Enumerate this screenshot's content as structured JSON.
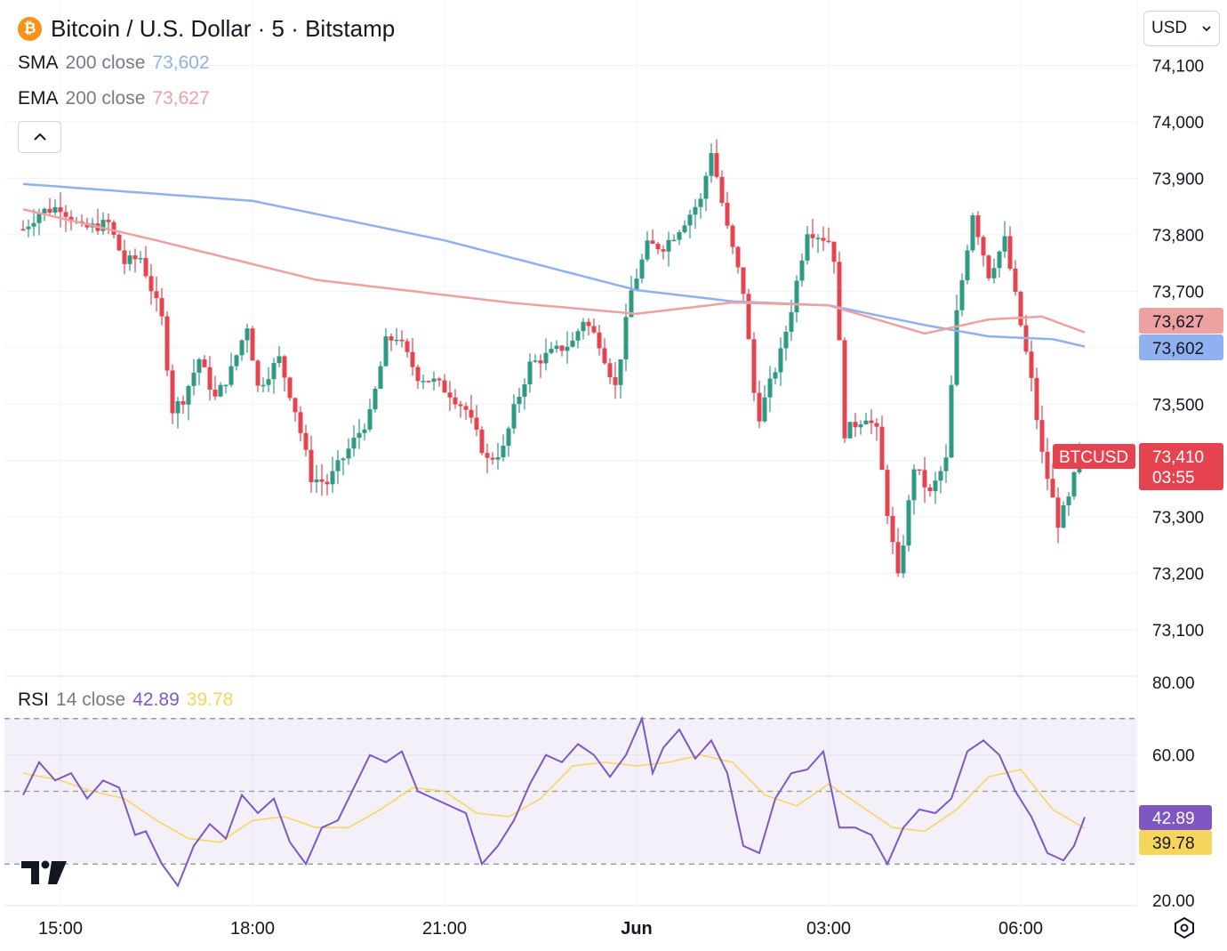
{
  "header": {
    "coin_symbol": "₿",
    "title": "Bitcoin / U.S. Dollar · 5 · Bitstamp",
    "sma": {
      "name": "SMA",
      "params": "200 close",
      "value": "73,602",
      "color": "#8fb1f0"
    },
    "ema": {
      "name": "EMA",
      "params": "200 close",
      "value": "73,627",
      "color": "#eea1a1"
    },
    "collapse_icon": "chevron-up-icon"
  },
  "currency_selector": {
    "value": "USD",
    "icon": "chevron-down-icon"
  },
  "rsi_header": {
    "name": "RSI",
    "params": "14 close",
    "rsi_value": "42.89",
    "ma_value": "39.78",
    "rsi_color": "#7e57c2",
    "ma_color": "#f6d55c"
  },
  "price_scale": {
    "ticks": [
      "74,100",
      "74,000",
      "73,900",
      "73,800",
      "73,700",
      "73,500",
      "73,300",
      "73,200",
      "73,100"
    ],
    "ema_badge": "73,627",
    "sma_badge": "73,602",
    "symbol_badge": "BTCUSD",
    "last_price": "73,410",
    "countdown": "03:55",
    "down_color": "#e5434f",
    "up_color": "#2f9a83"
  },
  "rsi_scale": {
    "ticks": [
      "80.00",
      "60.00",
      "20.00"
    ],
    "rsi_badge": "42.89",
    "ma_badge": "39.78",
    "upper_band": 70,
    "middle_band": 50,
    "lower_band": 30
  },
  "time_axis": {
    "labels": [
      "15:00",
      "18:00",
      "21:00",
      "Jun",
      "03:00",
      "06:00"
    ]
  },
  "branding": {
    "logo_icon": "tradingview-logo-icon",
    "settings_icon": "settings-gear-icon"
  },
  "chart_data": [
    {
      "type": "candlestick",
      "title": "Bitcoin / U.S. Dollar · 5 · Bitstamp",
      "ylim": [
        73050,
        74150
      ],
      "x_start": "14:25",
      "x_end": "07:00",
      "x_labels": [
        "15:00",
        "18:00",
        "21:00",
        "Jun",
        "03:00",
        "06:00"
      ],
      "close_anchors": [
        [
          "14:25",
          73810
        ],
        [
          "14:40",
          73840
        ],
        [
          "15:00",
          73850
        ],
        [
          "15:20",
          73810
        ],
        [
          "15:45",
          73820
        ],
        [
          "16:00",
          73750
        ],
        [
          "16:15",
          73760
        ],
        [
          "16:35",
          73650
        ],
        [
          "16:45",
          73490
        ],
        [
          "16:55",
          73510
        ],
        [
          "17:10",
          73580
        ],
        [
          "17:25",
          73510
        ],
        [
          "17:40",
          73560
        ],
        [
          "17:55",
          73640
        ],
        [
          "18:05",
          73530
        ],
        [
          "18:25",
          73580
        ],
        [
          "18:40",
          73490
        ],
        [
          "18:55",
          73370
        ],
        [
          "19:10",
          73360
        ],
        [
          "19:30",
          73420
        ],
        [
          "19:50",
          73480
        ],
        [
          "20:05",
          73610
        ],
        [
          "20:15",
          73620
        ],
        [
          "20:35",
          73550
        ],
        [
          "20:50",
          73540
        ],
        [
          "21:05",
          73520
        ],
        [
          "21:20",
          73490
        ],
        [
          "21:40",
          73400
        ],
        [
          "21:55",
          73420
        ],
        [
          "22:05",
          73490
        ],
        [
          "22:20",
          73570
        ],
        [
          "22:40",
          73590
        ],
        [
          "23:00",
          73610
        ],
        [
          "23:10",
          73650
        ],
        [
          "23:25",
          73610
        ],
        [
          "23:40",
          73530
        ],
        [
          "23:55",
          73700
        ],
        [
          "0:10",
          73780
        ],
        [
          "0:25",
          73780
        ],
        [
          "0:35",
          73800
        ],
        [
          "0:55",
          73850
        ],
        [
          "1:00",
          73860
        ],
        [
          "1:10",
          73950
        ],
        [
          "1:25",
          73810
        ],
        [
          "1:40",
          73700
        ],
        [
          "1:50",
          73520
        ],
        [
          "1:55",
          73480
        ],
        [
          "2:15",
          73590
        ],
        [
          "2:25",
          73670
        ],
        [
          "2:40",
          73810
        ],
        [
          "3:00",
          73790
        ],
        [
          "3:05",
          73760
        ],
        [
          "3:15",
          73450
        ],
        [
          "3:35",
          73480
        ],
        [
          "3:45",
          73450
        ],
        [
          "3:55",
          73310
        ],
        [
          "4:05",
          73190
        ],
        [
          "4:20",
          73390
        ],
        [
          "4:35",
          73340
        ],
        [
          "4:50",
          73400
        ],
        [
          "5:00",
          73660
        ],
        [
          "5:15",
          73840
        ],
        [
          "5:30",
          73730
        ],
        [
          "5:45",
          73790
        ],
        [
          "6:00",
          73640
        ],
        [
          "6:10",
          73540
        ],
        [
          "6:20",
          73410
        ],
        [
          "6:35",
          73290
        ],
        [
          "6:45",
          73330
        ],
        [
          "6:55",
          73410
        ]
      ],
      "sma_200": [
        [
          "14:25",
          73890
        ],
        [
          "18:00",
          73860
        ],
        [
          "21:00",
          73790
        ],
        [
          "0:00",
          73702
        ],
        [
          "1:30",
          73682
        ],
        [
          "3:00",
          73675
        ],
        [
          "4:30",
          73640
        ],
        [
          "5:30",
          73620
        ],
        [
          "6:30",
          73615
        ],
        [
          "7:00",
          73602
        ]
      ],
      "ema_200": [
        [
          "14:25",
          73845
        ],
        [
          "16:30",
          73790
        ],
        [
          "19:00",
          73720
        ],
        [
          "22:00",
          73680
        ],
        [
          "0:00",
          73660
        ],
        [
          "1:30",
          73680
        ],
        [
          "3:00",
          73675
        ],
        [
          "4:30",
          73625
        ],
        [
          "5:30",
          73650
        ],
        [
          "6:20",
          73655
        ],
        [
          "7:00",
          73627
        ]
      ],
      "last_price": 73410
    },
    {
      "type": "line",
      "title": "RSI 14 close",
      "ylim": [
        20,
        80
      ],
      "bands": [
        30,
        50,
        70
      ],
      "rsi": [
        [
          "14:25",
          49
        ],
        [
          "14:40",
          58
        ],
        [
          "14:55",
          53
        ],
        [
          "15:10",
          55
        ],
        [
          "15:25",
          48
        ],
        [
          "15:40",
          53
        ],
        [
          "15:55",
          51
        ],
        [
          "16:10",
          38
        ],
        [
          "16:20",
          39
        ],
        [
          "16:35",
          30
        ],
        [
          "16:50",
          24
        ],
        [
          "17:05",
          35
        ],
        [
          "17:20",
          41
        ],
        [
          "17:35",
          37
        ],
        [
          "17:50",
          49
        ],
        [
          "18:05",
          44
        ],
        [
          "18:20",
          48
        ],
        [
          "18:35",
          36
        ],
        [
          "18:50",
          30
        ],
        [
          "19:05",
          40
        ],
        [
          "19:20",
          42
        ],
        [
          "19:35",
          51
        ],
        [
          "19:50",
          60
        ],
        [
          "20:05",
          58
        ],
        [
          "20:20",
          61
        ],
        [
          "20:35",
          50
        ],
        [
          "20:50",
          48
        ],
        [
          "21:05",
          46
        ],
        [
          "21:20",
          44
        ],
        [
          "21:35",
          30
        ],
        [
          "21:50",
          35
        ],
        [
          "22:05",
          42
        ],
        [
          "22:20",
          52
        ],
        [
          "22:35",
          60
        ],
        [
          "22:50",
          58
        ],
        [
          "23:05",
          63
        ],
        [
          "23:20",
          60
        ],
        [
          "23:35",
          54
        ],
        [
          "23:50",
          60
        ],
        [
          "0:05",
          70
        ],
        [
          "0:15",
          55
        ],
        [
          "0:25",
          62
        ],
        [
          "0:40",
          67
        ],
        [
          "0:55",
          59
        ],
        [
          "1:10",
          64
        ],
        [
          "1:25",
          55
        ],
        [
          "1:40",
          35
        ],
        [
          "1:55",
          33
        ],
        [
          "2:10",
          48
        ],
        [
          "2:25",
          55
        ],
        [
          "2:40",
          56
        ],
        [
          "2:55",
          61
        ],
        [
          "3:10",
          40
        ],
        [
          "3:25",
          40
        ],
        [
          "3:40",
          38
        ],
        [
          "3:55",
          30
        ],
        [
          "4:10",
          40
        ],
        [
          "4:25",
          45
        ],
        [
          "4:40",
          44
        ],
        [
          "4:55",
          48
        ],
        [
          "5:10",
          61
        ],
        [
          "5:25",
          64
        ],
        [
          "5:40",
          60
        ],
        [
          "5:55",
          50
        ],
        [
          "6:10",
          43
        ],
        [
          "6:25",
          33
        ],
        [
          "6:40",
          31
        ],
        [
          "6:50",
          35
        ],
        [
          "7:00",
          42.89
        ]
      ],
      "ma": [
        [
          "14:25",
          55
        ],
        [
          "15:00",
          53
        ],
        [
          "15:30",
          50
        ],
        [
          "16:00",
          48
        ],
        [
          "16:30",
          42
        ],
        [
          "17:00",
          37
        ],
        [
          "17:30",
          36
        ],
        [
          "18:00",
          42
        ],
        [
          "18:30",
          43
        ],
        [
          "19:00",
          40
        ],
        [
          "19:30",
          40
        ],
        [
          "20:00",
          45
        ],
        [
          "20:30",
          51
        ],
        [
          "21:00",
          50
        ],
        [
          "21:30",
          44
        ],
        [
          "22:00",
          43
        ],
        [
          "22:30",
          48
        ],
        [
          "23:00",
          57
        ],
        [
          "23:30",
          58
        ],
        [
          "0:00",
          57
        ],
        [
          "0:30",
          58
        ],
        [
          "1:00",
          60
        ],
        [
          "1:30",
          58
        ],
        [
          "2:00",
          49
        ],
        [
          "2:30",
          46
        ],
        [
          "3:00",
          52
        ],
        [
          "3:30",
          46
        ],
        [
          "4:00",
          40
        ],
        [
          "4:30",
          39
        ],
        [
          "5:00",
          45
        ],
        [
          "5:30",
          54
        ],
        [
          "6:00",
          56
        ],
        [
          "6:30",
          45
        ],
        [
          "7:00",
          39.78
        ]
      ],
      "last_rsi": 42.89,
      "last_ma": 39.78
    }
  ]
}
